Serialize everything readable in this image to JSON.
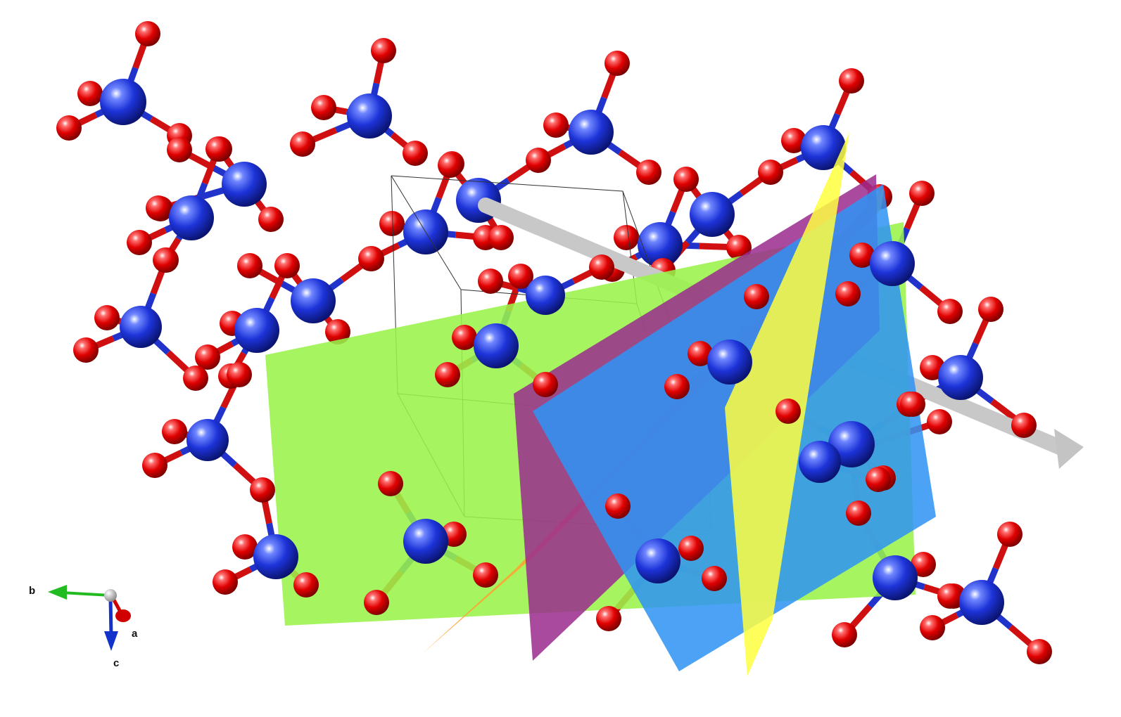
{
  "structure_view": {
    "colors": {
      "tetrahedral_atom": "#1e2fd6",
      "oxygen_atom": "#e00000",
      "bond_blue": "#2233cc",
      "bond_red": "#d01010",
      "unit_cell_edge": "#333333",
      "direction_arrow": "#c8c8c8",
      "plane_green": "#99f24a",
      "plane_orange": "#ffa030",
      "plane_purple": "#9a2a8e",
      "plane_blue": "#2f94f5",
      "plane_yellow": "#ffff40"
    },
    "planes": [
      "plane_green",
      "plane_orange",
      "plane_purple",
      "plane_blue",
      "plane_yellow"
    ],
    "direction_arrow": "gray-vector-arrow"
  },
  "axis_triad": {
    "a_label": "a",
    "b_label": "b",
    "c_label": "c",
    "a_color": "#d00000",
    "b_color": "#22bb22",
    "c_color": "#1133cc"
  }
}
